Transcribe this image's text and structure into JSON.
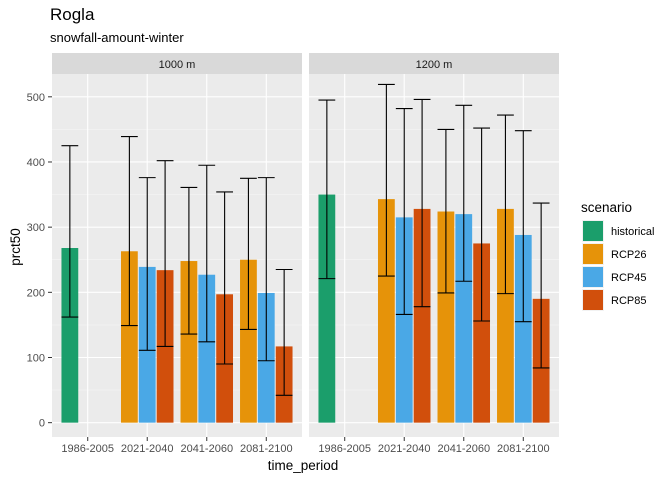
{
  "chart_data": {
    "type": "bar",
    "title": "Rogla",
    "subtitle": "snowfall-amount-winter",
    "xlabel": "time_period",
    "ylabel": "prct50",
    "ylim": [
      -22,
      535
    ],
    "yticks": [
      0,
      100,
      200,
      300,
      400,
      500
    ],
    "categories": [
      "1986-2005",
      "2021-2040",
      "2041-2060",
      "2081-2100"
    ],
    "legend": {
      "title": "scenario",
      "placement": "right",
      "entries": [
        {
          "name": "historical",
          "color": "#1b9e6b"
        },
        {
          "name": "RCP26",
          "color": "#e69309"
        },
        {
          "name": "RCP45",
          "color": "#4aa8e6"
        },
        {
          "name": "RCP85",
          "color": "#d14f0c"
        }
      ]
    },
    "panels": [
      {
        "label": "1000 m",
        "bars": [
          {
            "category": "1986-2005",
            "scenario": "historical",
            "value": 268,
            "lower": 162,
            "upper": 425
          },
          {
            "category": "2021-2040",
            "scenario": "RCP26",
            "value": 263,
            "lower": 149,
            "upper": 439
          },
          {
            "category": "2021-2040",
            "scenario": "RCP45",
            "value": 239,
            "lower": 111,
            "upper": 376
          },
          {
            "category": "2021-2040",
            "scenario": "RCP85",
            "value": 234,
            "lower": 117,
            "upper": 402
          },
          {
            "category": "2041-2060",
            "scenario": "RCP26",
            "value": 248,
            "lower": 136,
            "upper": 361
          },
          {
            "category": "2041-2060",
            "scenario": "RCP45",
            "value": 227,
            "lower": 124,
            "upper": 395
          },
          {
            "category": "2041-2060",
            "scenario": "RCP85",
            "value": 197,
            "lower": 90,
            "upper": 354
          },
          {
            "category": "2081-2100",
            "scenario": "RCP26",
            "value": 250,
            "lower": 143,
            "upper": 375
          },
          {
            "category": "2081-2100",
            "scenario": "RCP45",
            "value": 199,
            "lower": 95,
            "upper": 376
          },
          {
            "category": "2081-2100",
            "scenario": "RCP85",
            "value": 117,
            "lower": 42,
            "upper": 235
          }
        ]
      },
      {
        "label": "1200 m",
        "bars": [
          {
            "category": "1986-2005",
            "scenario": "historical",
            "value": 350,
            "lower": 221,
            "upper": 495
          },
          {
            "category": "2021-2040",
            "scenario": "RCP26",
            "value": 343,
            "lower": 225,
            "upper": 519
          },
          {
            "category": "2021-2040",
            "scenario": "RCP45",
            "value": 315,
            "lower": 166,
            "upper": 482
          },
          {
            "category": "2021-2040",
            "scenario": "RCP85",
            "value": 328,
            "lower": 178,
            "upper": 496
          },
          {
            "category": "2041-2060",
            "scenario": "RCP26",
            "value": 324,
            "lower": 199,
            "upper": 450
          },
          {
            "category": "2041-2060",
            "scenario": "RCP45",
            "value": 320,
            "lower": 217,
            "upper": 487
          },
          {
            "category": "2041-2060",
            "scenario": "RCP85",
            "value": 275,
            "lower": 156,
            "upper": 452
          },
          {
            "category": "2081-2100",
            "scenario": "RCP26",
            "value": 328,
            "lower": 198,
            "upper": 472
          },
          {
            "category": "2081-2100",
            "scenario": "RCP45",
            "value": 288,
            "lower": 155,
            "upper": 448
          },
          {
            "category": "2081-2100",
            "scenario": "RCP85",
            "value": 190,
            "lower": 84,
            "upper": 337
          }
        ]
      }
    ]
  }
}
